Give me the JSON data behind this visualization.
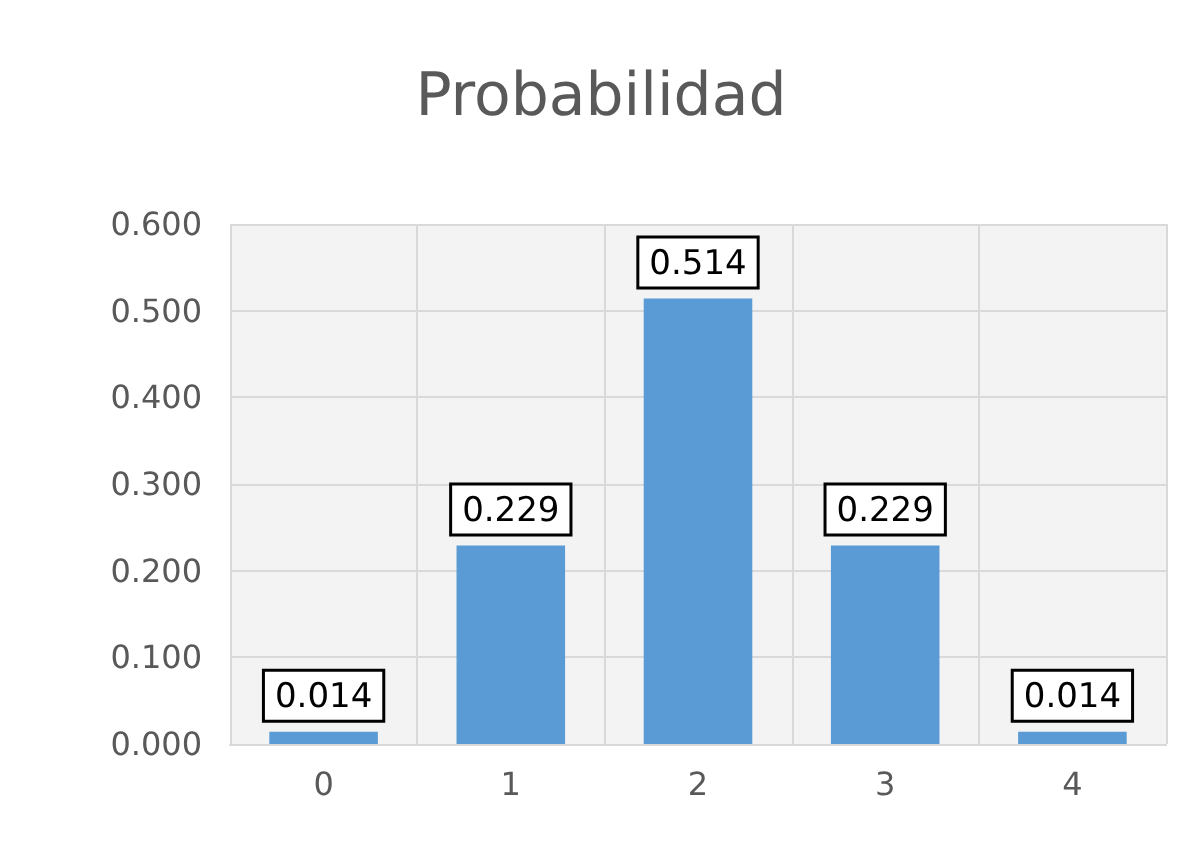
{
  "chart_data": {
    "type": "bar",
    "title": "Probabilidad",
    "categories": [
      "0",
      "1",
      "2",
      "3",
      "4"
    ],
    "values": [
      0.014,
      0.229,
      0.514,
      0.229,
      0.014
    ],
    "color": "#5b9bd5",
    "ylim": [
      0,
      0.6
    ],
    "yticks": [
      {
        "value": 0,
        "label": "0.000"
      },
      {
        "value": 0.1,
        "label": "0.100"
      },
      {
        "value": 0.2,
        "label": "0.200"
      },
      {
        "value": 0.3,
        "label": "0.300"
      },
      {
        "value": 0.4,
        "label": "0.400"
      },
      {
        "value": 0.5,
        "label": "0.500"
      },
      {
        "value": 0.6,
        "label": "0.600"
      }
    ],
    "grid": true,
    "data_labels": true
  }
}
